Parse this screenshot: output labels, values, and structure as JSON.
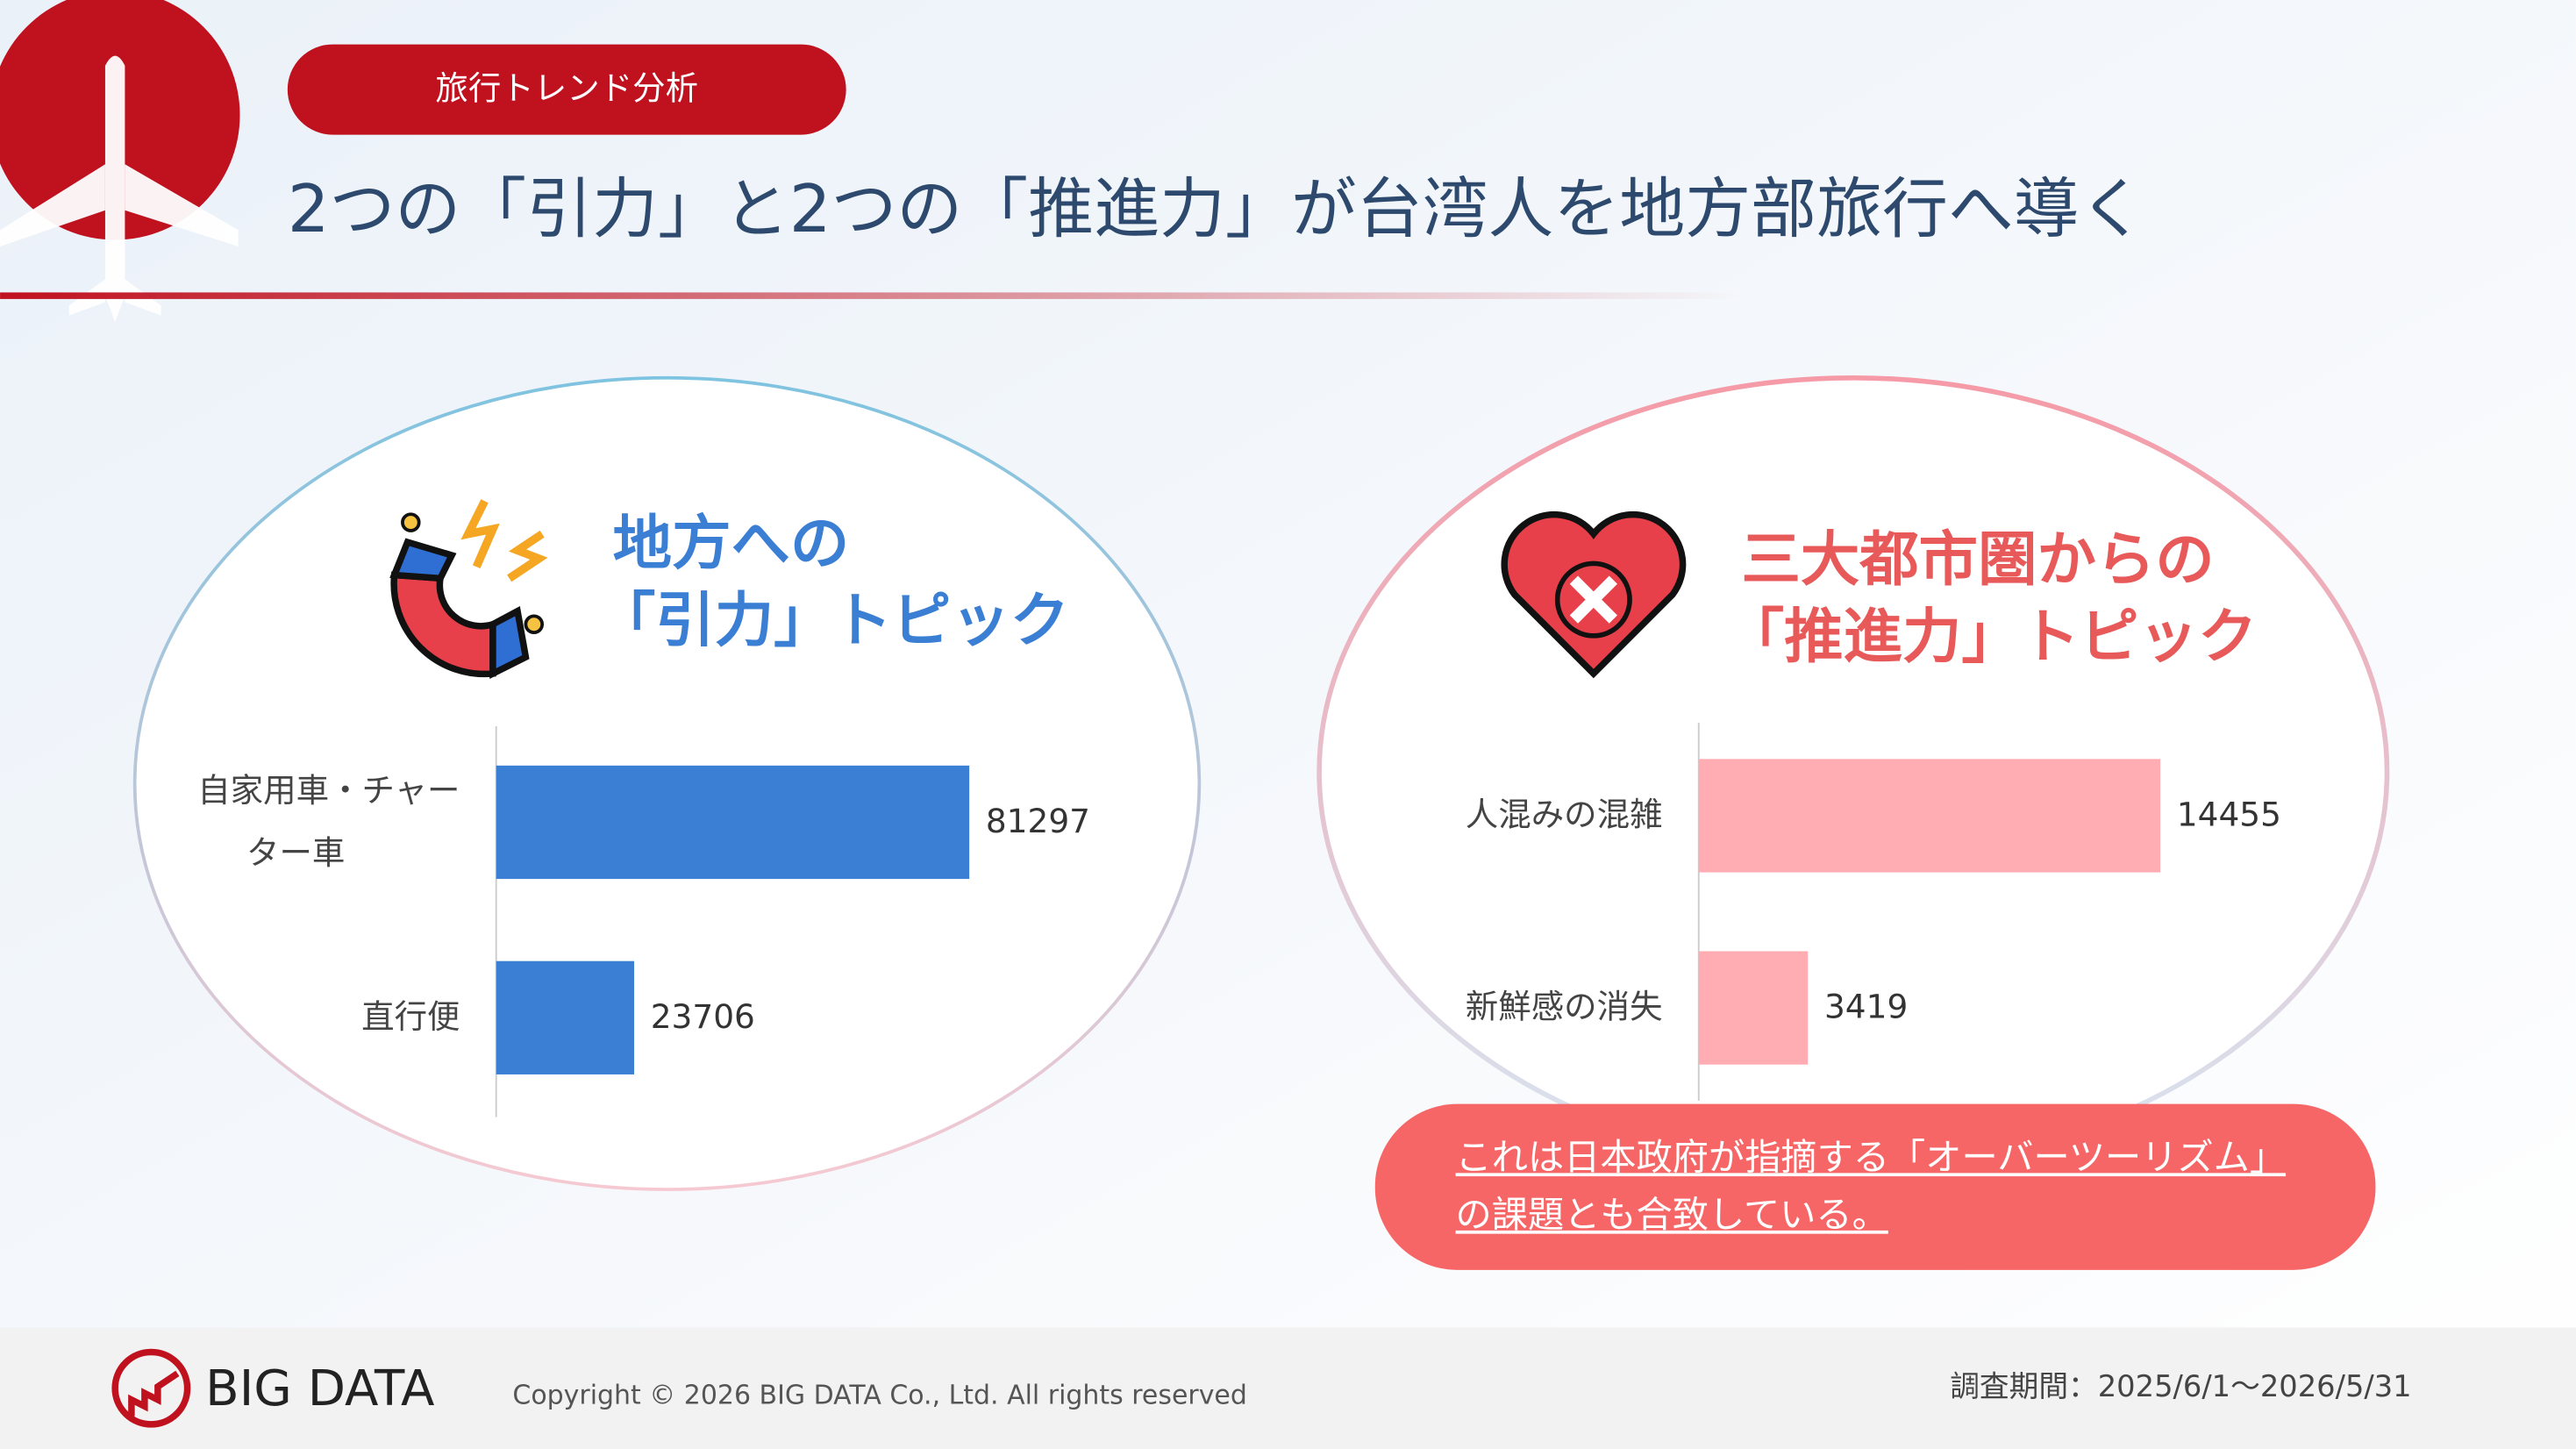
{
  "header": {
    "tag": "旅行トレンド分析",
    "title": "2つの「引力」と2つの「推進力」が台湾人を地方部旅行へ導く"
  },
  "panels": [
    {
      "heading": [
        "地方への",
        "「引力」トピック"
      ]
    },
    {
      "heading": [
        "三大都市圏からの",
        "「推進力」トピック"
      ]
    }
  ],
  "chart_data": [
    {
      "type": "bar",
      "orientation": "horizontal",
      "categories": [
        "自家用車・チャーター車",
        "直行便"
      ],
      "values": [
        81297,
        23706
      ],
      "color": "#3a7fd4"
    },
    {
      "type": "bar",
      "orientation": "horizontal",
      "categories": [
        "人混みの混雑",
        "新鮮感の消失"
      ],
      "values": [
        14455,
        3419
      ],
      "color": "#ffadb3"
    }
  ],
  "callout": "これは日本政府が指摘する「オーバーツーリズム」の課題とも合致している。",
  "footer": {
    "logo": "BIG DATA",
    "copyright": "Copyright © 2026 BIG DATA Co., Ltd. All rights reserved",
    "period": "調査期間：2025/6/1～2026/5/31"
  }
}
